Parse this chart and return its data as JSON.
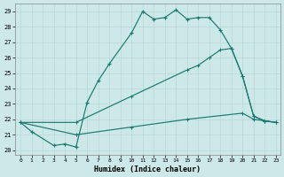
{
  "xlabel": "Humidex (Indice chaleur)",
  "xlim_min": -0.5,
  "xlim_max": 23.4,
  "ylim_min": 19.7,
  "ylim_max": 29.5,
  "yticks": [
    20,
    21,
    22,
    23,
    24,
    25,
    26,
    27,
    28,
    29
  ],
  "xticks": [
    0,
    1,
    2,
    3,
    4,
    5,
    6,
    7,
    8,
    9,
    10,
    11,
    12,
    13,
    14,
    15,
    16,
    17,
    18,
    19,
    20,
    21,
    22,
    23
  ],
  "bg_color": "#cce8e8",
  "line_color": "#1a7a6e",
  "grid_color": "#b8d8d8",
  "line1_x": [
    0,
    1,
    3,
    4,
    5,
    6,
    7,
    8,
    10,
    11,
    12,
    13,
    14,
    15,
    16,
    17,
    18,
    19,
    20,
    21,
    22,
    23
  ],
  "line1_y": [
    21.8,
    21.2,
    20.3,
    20.4,
    20.2,
    23.1,
    24.5,
    25.6,
    27.6,
    29.0,
    28.5,
    28.6,
    29.1,
    28.5,
    28.6,
    28.6,
    27.8,
    26.6,
    24.8,
    22.2,
    21.9,
    21.8
  ],
  "line2_x": [
    0,
    5,
    10,
    15,
    16,
    17,
    18,
    19,
    20,
    21,
    22,
    23
  ],
  "line2_y": [
    21.8,
    21.8,
    23.5,
    25.2,
    25.5,
    26.0,
    26.5,
    26.6,
    24.8,
    22.2,
    21.9,
    21.8
  ],
  "line3_x": [
    0,
    5,
    10,
    15,
    20,
    21,
    22,
    23
  ],
  "line3_y": [
    21.8,
    21.0,
    21.5,
    22.0,
    22.4,
    22.0,
    21.9,
    21.8
  ]
}
